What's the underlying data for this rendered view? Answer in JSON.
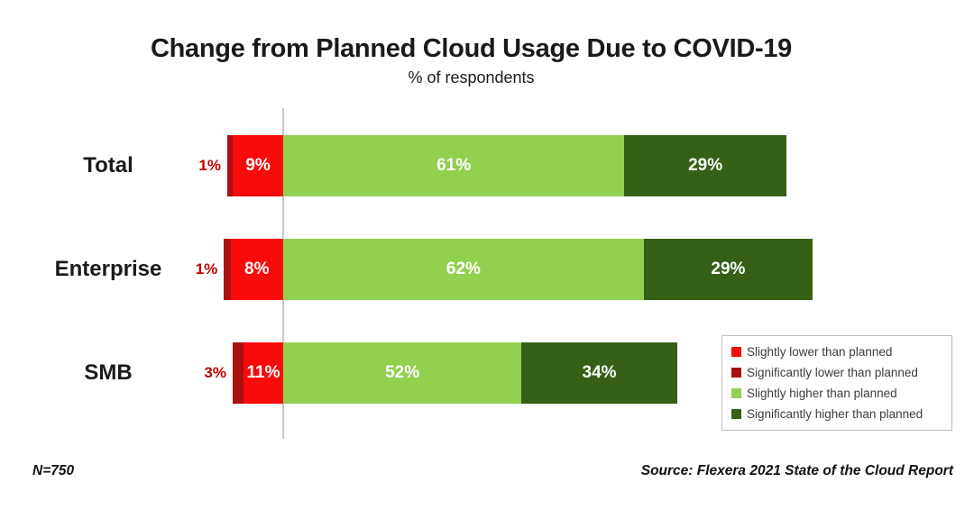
{
  "page": {
    "title": "Change from Planned Cloud Usage Due to COVID-19",
    "subtitle": "% of respondents",
    "sample_note": "N=750",
    "source_note": "Source: Flexera 2021 State of the Cloud Report"
  },
  "colors": {
    "slightly_lower": "#F90B0B",
    "significantly_lower": "#A91111",
    "slightly_higher": "#92D050",
    "significantly_higher": "#366016",
    "outside_value_label": "#C00000",
    "axis_line": "#C9C9C9",
    "legend_border": "#BFBFBF",
    "legend_text": "#3C3C3C",
    "segment_label_text": "#FFFFFF"
  },
  "chart_data": {
    "type": "bar",
    "orientation": "horizontal",
    "diverging": true,
    "title": "Change from Planned Cloud Usage Due to COVID-19",
    "subtitle": "% of respondents",
    "categories": [
      "Total",
      "Enterprise",
      "SMB"
    ],
    "series": [
      {
        "name": "Slightly lower than planned",
        "color": "#F90B0B",
        "values": [
          9,
          8,
          11
        ]
      },
      {
        "name": "Significantly lower than planned",
        "color": "#A91111",
        "values": [
          1,
          1,
          3
        ]
      },
      {
        "name": "Slightly higher than planned",
        "color": "#92D050",
        "values": [
          61,
          62,
          52
        ]
      },
      {
        "name": "Significantly higher than planned",
        "color": "#366016",
        "values": [
          29,
          29,
          34
        ]
      }
    ],
    "value_unit": "%",
    "legend_position": "bottom-right",
    "baseline_note": "Lower-than-planned segments extend left of the zero axis; higher-than-planned segments extend right",
    "label_rules": "Significantly-lower values are labeled in red outside the bar; all other segment values are labeled in white inside the segments",
    "sample_size": "N=750",
    "source": "Source: Flexera 2021 State of the Cloud Report"
  }
}
